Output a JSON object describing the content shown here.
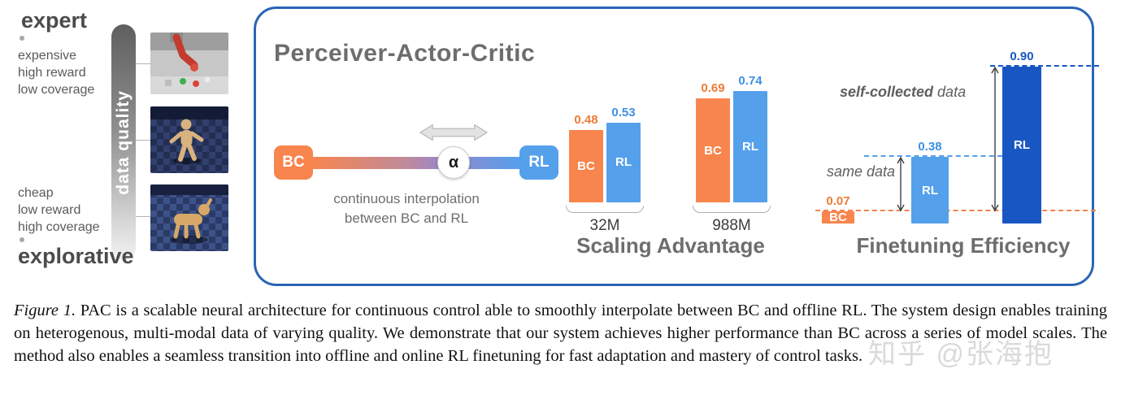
{
  "left_panel": {
    "top_label": "expert",
    "bottom_label": "explorative",
    "axis_label": "data quality",
    "top_traits": [
      "expensive",
      "high reward",
      "low coverage"
    ],
    "bottom_traits": [
      "cheap",
      "low reward",
      "high coverage"
    ],
    "images": [
      "robot-arm-manipulation",
      "humanoid-walker",
      "quadruped-dog"
    ]
  },
  "panel": {
    "title": "Perceiver-Actor-Critic",
    "interpolation": {
      "bc_label": "BC",
      "rl_label": "RL",
      "alpha_label": "α",
      "caption_line1": "continuous interpolation",
      "caption_line2": "between BC and RL"
    }
  },
  "chart_data": [
    {
      "type": "bar",
      "title": "Scaling Advantage",
      "categories": [
        "32M",
        "988M"
      ],
      "series": [
        {
          "name": "BC",
          "color": "#F8854D",
          "values": [
            0.48,
            0.69
          ],
          "labels": [
            "0.48",
            "0.69"
          ]
        },
        {
          "name": "RL",
          "color": "#55A0EB",
          "values": [
            0.53,
            0.74
          ],
          "labels": [
            "0.53",
            "0.74"
          ]
        }
      ],
      "ylim": [
        0,
        1
      ],
      "grid": false,
      "legend": "series names printed inside bars"
    },
    {
      "type": "bar",
      "title": "Finetuning Efficiency",
      "bars": [
        {
          "name": "BC",
          "value": 0.07,
          "label": "0.07",
          "color": "#F8854D"
        },
        {
          "name": "RL",
          "value": 0.38,
          "label": "0.38",
          "color": "#55A0EB"
        },
        {
          "name": "RL",
          "value": 0.9,
          "label": "0.90",
          "color": "#1857C3"
        }
      ],
      "annotations": {
        "same_data": "same data",
        "self_collected_bold": "self-collected",
        "self_collected_rest": " data"
      },
      "reference_lines": [
        {
          "value": 0.07,
          "style": "dashed",
          "color": "#F8854D"
        },
        {
          "value": 0.38,
          "style": "dashed",
          "color": "#55A0EB"
        },
        {
          "value": 0.9,
          "style": "dashed",
          "color": "#1857C3"
        }
      ],
      "ylim": [
        0,
        1
      ],
      "grid": false
    }
  ],
  "caption": {
    "label": "Figure 1.",
    "text": " PAC is a scalable neural architecture for continuous control able to smoothly interpolate between BC and offline RL. The system design enables training on heterogenous, multi-modal data of varying quality. We demonstrate that our system achieves higher performance than BC across a series of model scales. The method also enables a seamless transition into offline and online RL finetuning for fast adaptation and mastery of control tasks."
  },
  "watermark": "知乎 @张海抱",
  "colors": {
    "bc_orange": "#F8854D",
    "rl_blue": "#55A0EB",
    "rl_dark_blue": "#1857C3",
    "panel_border": "#2A65B4",
    "heading_gray": "#6D6D6D"
  }
}
